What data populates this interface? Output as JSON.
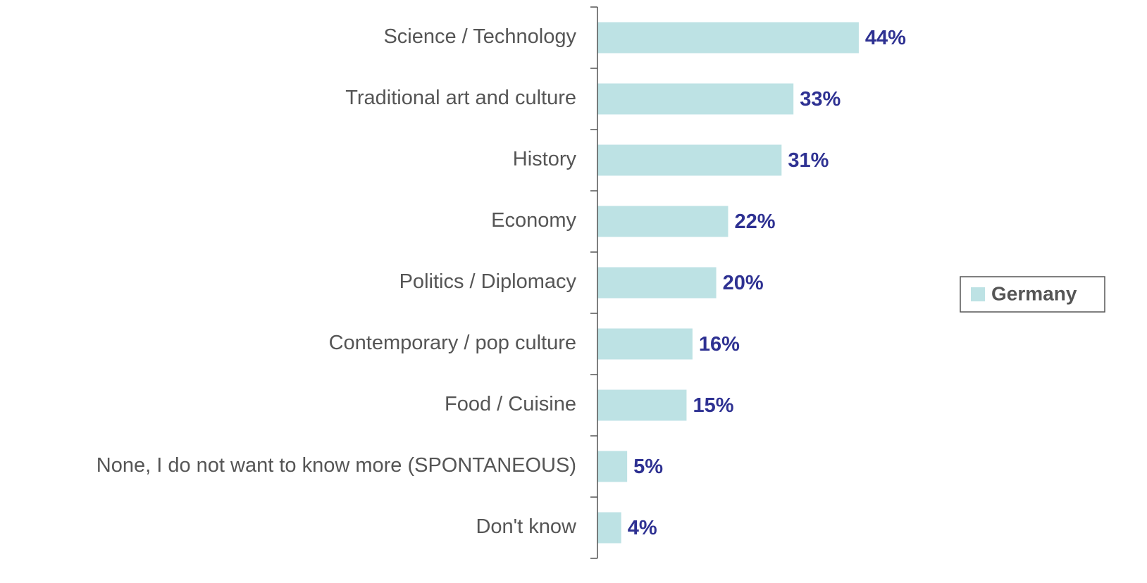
{
  "chart_data": {
    "type": "bar",
    "orientation": "horizontal",
    "categories": [
      "Science / Technology",
      "Traditional art and culture",
      "History",
      "Economy",
      "Politics / Diplomacy",
      "Contemporary / pop culture",
      "Food / Cuisine",
      "None, I do not want to know more (SPONTANEOUS)",
      "Don't know"
    ],
    "series": [
      {
        "name": "Germany",
        "color": "#bde2e4",
        "values": [
          44,
          33,
          31,
          22,
          20,
          16,
          15,
          5,
          4
        ],
        "value_labels": [
          "44%",
          "33%",
          "31%",
          "22%",
          "20%",
          "16%",
          "15%",
          "5%",
          "4%"
        ]
      }
    ],
    "legend": "right"
  }
}
